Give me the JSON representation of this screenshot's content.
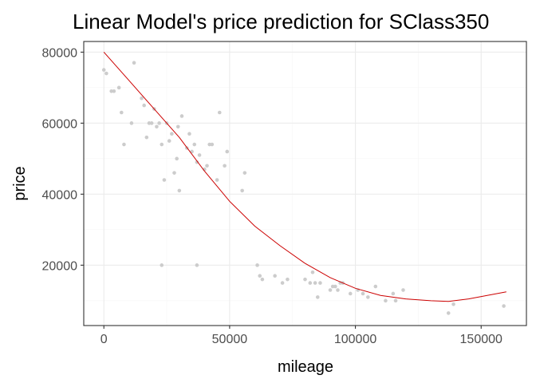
{
  "chart_data": {
    "type": "scatter",
    "title": "Linear Model's price prediction for SClass350",
    "xlabel": "mileage",
    "ylabel": "price",
    "xlim": [
      -8000,
      168000
    ],
    "ylim": [
      3000,
      83000
    ],
    "x_ticks": [
      0,
      50000,
      100000,
      150000
    ],
    "x_tick_labels": [
      "0",
      "50000",
      "100000",
      "150000"
    ],
    "y_ticks": [
      20000,
      40000,
      60000,
      80000
    ],
    "y_tick_labels": [
      "20000",
      "40000",
      "60000",
      "80000"
    ],
    "grid": true,
    "legend": "none",
    "colors": {
      "points": "#cccccc",
      "fit_line": "#cc0000",
      "panel_border": "#333333",
      "grid_major": "#ebebeb",
      "grid_minor": "#f5f5f5"
    },
    "series": [
      {
        "type": "scatter",
        "x": [
          0,
          1000,
          3000,
          4000,
          6000,
          7000,
          8000,
          11000,
          12000,
          15000,
          16000,
          17000,
          18000,
          19000,
          20000,
          21000,
          22000,
          23000,
          24000,
          25000,
          26000,
          27000,
          28000,
          29000,
          29500,
          30000,
          31000,
          33000,
          34000,
          35000,
          36000,
          37000,
          38000,
          40000,
          41000,
          42000,
          43000,
          45000,
          46000,
          48000,
          49000,
          55000,
          56000,
          61000,
          62000,
          63000,
          68000,
          71000,
          73000,
          80000,
          82000,
          83000,
          84000,
          85000,
          86000,
          90000,
          91000,
          92000,
          93000,
          94000,
          95000,
          98000,
          101000,
          103000,
          105000,
          108000,
          112000,
          115000,
          116000,
          119000,
          137000,
          139000,
          159000,
          23000,
          37000
        ],
        "y": [
          75000,
          74000,
          69000,
          69000,
          70000,
          63000,
          54000,
          60000,
          77000,
          67000,
          65000,
          56000,
          60000,
          60000,
          64000,
          59000,
          60000,
          54000,
          44000,
          60000,
          55000,
          57000,
          46000,
          50000,
          59000,
          41000,
          62000,
          53000,
          57000,
          52000,
          54000,
          49000,
          51000,
          47000,
          48000,
          54000,
          54000,
          44000,
          63000,
          48000,
          52000,
          41000,
          46000,
          20000,
          17000,
          16000,
          17000,
          15000,
          16000,
          16000,
          15000,
          18000,
          15000,
          11000,
          15000,
          13000,
          14000,
          14000,
          13000,
          15000,
          15000,
          12000,
          13000,
          12000,
          11000,
          14000,
          10000,
          12000,
          10000,
          13000,
          6500,
          9000,
          8500,
          20000,
          20000
        ]
      },
      {
        "type": "line",
        "x": [
          0,
          10000,
          20000,
          30000,
          40000,
          50000,
          60000,
          70000,
          80000,
          90000,
          100000,
          110000,
          120000,
          130000,
          137000,
          145000,
          160000
        ],
        "y": [
          80000,
          72000,
          64000,
          56000,
          46500,
          38000,
          31000,
          25500,
          20500,
          16500,
          13500,
          11500,
          10500,
          10000,
          9800,
          10500,
          12500
        ]
      }
    ]
  }
}
